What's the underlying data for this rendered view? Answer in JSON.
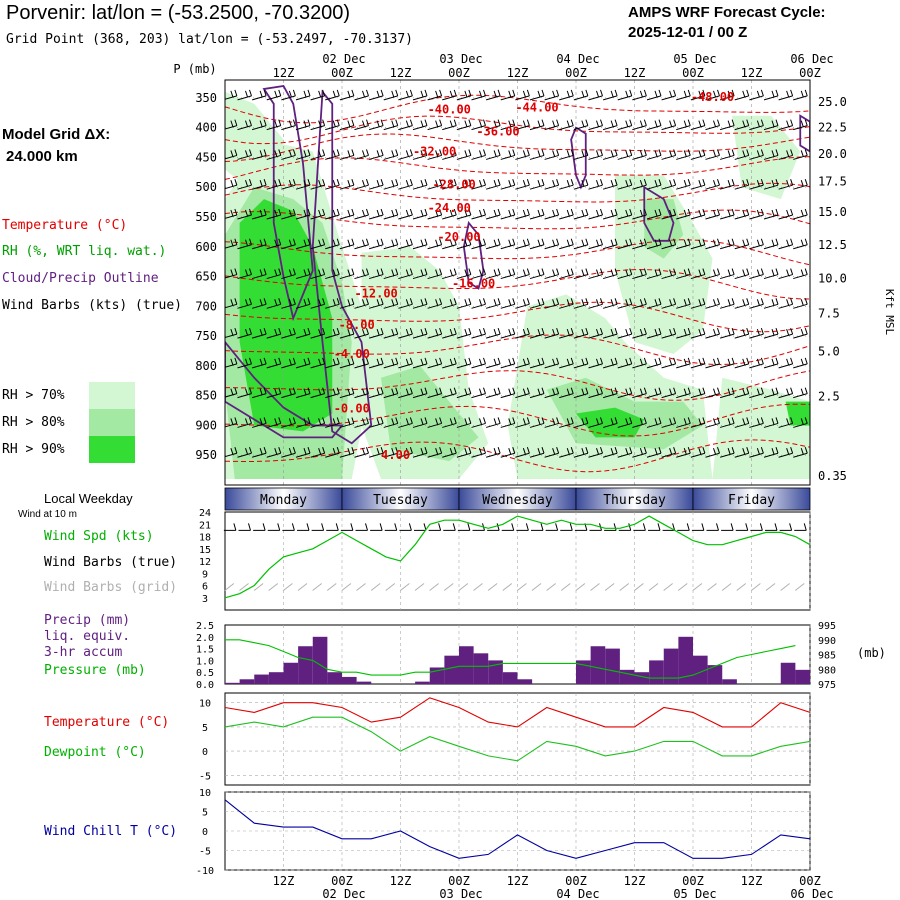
{
  "header": {
    "title": "Porvenir:  lat/lon = (-53.2500, -70.3200)",
    "grid_point": "Grid Point (368, 203) lat/lon = (-53.2497, -70.3137)",
    "cycle_line1": "AMPS WRF Forecast Cycle:",
    "cycle_line2": "2025-12-01 / 00  Z"
  },
  "left_panel": {
    "model_grid_label": "Model Grid ΔX:",
    "model_grid_value": "24.000 km",
    "legend_temperature": "Temperature (°C)",
    "legend_rh": "RH (%, WRT liq. wat.)",
    "legend_cloud": "Cloud/Precip Outline",
    "legend_wind": "Wind Barbs (kts) (true)",
    "rh70": "RH > 70%",
    "rh80": "RH > 80%",
    "rh90": "RH > 90%",
    "local_weekday": "Local Weekday",
    "wind_at_10m": "Wind at 10 m"
  },
  "colors": {
    "temperature": "#e00000",
    "rh": "#00a000",
    "cloud": "#602080",
    "pressure": "#00c000",
    "dewpoint": "#20c020",
    "windchill": "#0000a0",
    "grid_barbs": "#b0b0b0",
    "precip_bar": "#602080",
    "rh70_fill": "#d3f7d3",
    "rh80_fill": "#a3e8a3",
    "rh90_fill": "#33dd33",
    "weekday_dark": "#3a4a9a",
    "weekday_light": "#ffffff"
  },
  "chart_data": [
    {
      "id": "cross_section",
      "type": "contour",
      "title": "Time-height cross section",
      "ylabel": "P (mb)",
      "y2label": "Kft MSL",
      "top_time_label": "12Z 00Z 12Z 00Z 12Z 00Z 12Z 00Z 12Z 00Z",
      "date_labels": [
        "02 Dec",
        "03 Dec",
        "04 Dec",
        "05 Dec",
        "06 Dec"
      ],
      "date_hours": [
        24,
        48,
        72,
        96,
        120
      ],
      "time_ticks": [
        {
          "h": 12,
          "label": "12Z"
        },
        {
          "h": 24,
          "label": "00Z"
        },
        {
          "h": 36,
          "label": "12Z"
        },
        {
          "h": 48,
          "label": "00Z"
        },
        {
          "h": 60,
          "label": "12Z"
        },
        {
          "h": 72,
          "label": "00Z"
        },
        {
          "h": 84,
          "label": "12Z"
        },
        {
          "h": 96,
          "label": "00Z"
        },
        {
          "h": 108,
          "label": "12Z"
        },
        {
          "h": 120,
          "label": "00Z"
        }
      ],
      "xlim_hours": [
        0,
        120
      ],
      "pressure_levels": [
        350,
        400,
        450,
        500,
        550,
        600,
        650,
        700,
        750,
        800,
        850,
        900,
        950
      ],
      "ylim_mb": [
        320,
        1000
      ],
      "height_kft": [
        25.0,
        22.5,
        20.0,
        17.5,
        15.0,
        12.5,
        10.0,
        7.5,
        5.0,
        2.5,
        0.35
      ],
      "height_kft_labels": [
        "25.0",
        "22.5",
        "20.0",
        "17.5",
        "15.0",
        "12.5",
        "10.0",
        "7.5",
        "5.0",
        "2.5",
        "0.35"
      ],
      "height_kft_mb": [
        357,
        400,
        444,
        490,
        542,
        597,
        653,
        712,
        776,
        851,
        985
      ],
      "temp_labels": [
        {
          "text": "-48.00",
          "h": 100,
          "p": 355
        },
        {
          "text": "-44.00",
          "h": 64,
          "p": 373
        },
        {
          "text": "-40.00",
          "h": 46,
          "p": 376
        },
        {
          "text": "-36.00",
          "h": 56,
          "p": 413
        },
        {
          "text": "-32.00",
          "h": 43,
          "p": 447
        },
        {
          "text": "-28.00",
          "h": 47,
          "p": 502
        },
        {
          "text": "-24.00",
          "h": 46,
          "p": 542
        },
        {
          "text": "-20.00",
          "h": 48,
          "p": 590
        },
        {
          "text": "-16.00",
          "h": 51,
          "p": 668
        },
        {
          "text": "-12.00",
          "h": 31,
          "p": 685
        },
        {
          "text": "-8.00",
          "h": 27,
          "p": 738
        },
        {
          "text": "-4.00",
          "h": 26,
          "p": 787
        },
        {
          "text": "-0.00",
          "h": 26,
          "p": 878
        },
        {
          "text": "4.00",
          "h": 35,
          "p": 956
        }
      ]
    },
    {
      "id": "wind_panel",
      "type": "line",
      "title": "Wind at 10 m",
      "ylabel": "Wind Spd (kts)",
      "legend": [
        "Wind Spd (kts)",
        "Wind Barbs (true)",
        "Wind Barbs (grid)"
      ],
      "yticks": [
        24,
        21,
        18,
        15,
        12,
        9,
        6,
        3
      ],
      "ylim": [
        0,
        24
      ],
      "weekdays": [
        {
          "label": "Monday",
          "start": 0,
          "end": 24
        },
        {
          "label": "Tuesday",
          "start": 24,
          "end": 48
        },
        {
          "label": "Wednesday",
          "start": 48,
          "end": 72
        },
        {
          "label": "Thursday",
          "start": 72,
          "end": 96
        },
        {
          "label": "Friday",
          "start": 96,
          "end": 120
        }
      ],
      "x_hours": [
        0,
        3,
        6,
        9,
        12,
        15,
        18,
        21,
        24,
        27,
        30,
        33,
        36,
        39,
        42,
        45,
        48,
        51,
        54,
        57,
        60,
        63,
        66,
        69,
        72,
        75,
        78,
        81,
        84,
        87,
        90,
        93,
        96,
        99,
        102,
        105,
        108,
        111,
        114,
        117,
        120
      ],
      "series": [
        {
          "name": "Wind Spd (kts)",
          "values": [
            3,
            4,
            6,
            10,
            13,
            14,
            15,
            17,
            19,
            17,
            15,
            13,
            12,
            16,
            21,
            22,
            22,
            21,
            20,
            21,
            23,
            22,
            21,
            22,
            21,
            21,
            20,
            20,
            21,
            23,
            21,
            19,
            17,
            16,
            16,
            17,
            18,
            19,
            19,
            18,
            16
          ]
        }
      ]
    },
    {
      "id": "precip_panel",
      "type": "bar+line",
      "legend": [
        "Precip (mm)",
        "liq. equiv.",
        "3-hr accum",
        "Pressure (mb)"
      ],
      "y_label": "(mb)",
      "y_left_ticks": [
        0.0,
        0.5,
        1.0,
        1.5,
        2.0,
        2.5
      ],
      "y_left_tick_labels": [
        "0.0",
        "0.5",
        "1.0",
        "1.5",
        "2.0",
        "2.5"
      ],
      "ylim_left": [
        0,
        2.5
      ],
      "y_right_ticks": [
        975,
        980,
        985,
        990,
        995
      ],
      "ylim_right": [
        975,
        995
      ],
      "x_hours": [
        0,
        3,
        6,
        9,
        12,
        15,
        18,
        21,
        24,
        27,
        30,
        33,
        36,
        39,
        42,
        45,
        48,
        51,
        54,
        57,
        60,
        63,
        66,
        69,
        72,
        75,
        78,
        81,
        84,
        87,
        90,
        93,
        96,
        99,
        102,
        105,
        108,
        111,
        114,
        117
      ],
      "series": [
        {
          "name": "Precip 3-hr accum (mm)",
          "values": [
            0.05,
            0.2,
            0.4,
            0.5,
            0.9,
            1.6,
            2.0,
            0.5,
            0.3,
            0.1,
            0.0,
            0.0,
            0.0,
            0.1,
            0.7,
            1.2,
            1.6,
            1.3,
            1.0,
            0.5,
            0.2,
            0.0,
            0.0,
            0.0,
            1.0,
            1.6,
            1.5,
            0.6,
            0.5,
            1.0,
            1.5,
            2.0,
            1.2,
            0.8,
            0.2,
            0.0,
            0.0,
            0.0,
            0.9,
            0.6
          ]
        },
        {
          "name": "Pressure (mb)",
          "values": [
            990,
            990,
            989,
            988,
            986,
            984,
            983,
            980,
            979,
            979,
            978,
            978,
            978,
            979,
            979,
            980,
            981,
            981,
            981,
            982,
            982,
            982,
            982,
            982,
            982,
            981,
            980,
            979,
            978,
            977,
            977,
            977,
            978,
            980,
            982,
            984,
            985,
            986,
            987,
            988
          ]
        }
      ]
    },
    {
      "id": "temp_panel",
      "type": "line",
      "legend": [
        "Temperature (°C)",
        "Dewpoint (°C)"
      ],
      "yticks": [
        10,
        5,
        0,
        -5
      ],
      "ylim": [
        -7,
        12
      ],
      "x_hours": [
        0,
        6,
        12,
        18,
        24,
        30,
        36,
        42,
        48,
        54,
        60,
        66,
        72,
        78,
        84,
        90,
        96,
        102,
        108,
        114,
        120
      ],
      "series": [
        {
          "name": "Temperature (°C)",
          "values": [
            9,
            8,
            10,
            10,
            9,
            6,
            7,
            11,
            9,
            6,
            5,
            9,
            7,
            5,
            5,
            9,
            8,
            5,
            5,
            10,
            8
          ]
        },
        {
          "name": "Dewpoint (°C)",
          "values": [
            5,
            6,
            5,
            7,
            7,
            4,
            0,
            3,
            1,
            -1,
            -2,
            2,
            1,
            -1,
            0,
            2,
            2,
            -1,
            -1,
            1,
            2
          ]
        }
      ]
    },
    {
      "id": "windchill_panel",
      "type": "line",
      "legend": [
        "Wind Chill T (°C)"
      ],
      "yticks": [
        10,
        5,
        0,
        -5,
        -10
      ],
      "ylim": [
        -10,
        10
      ],
      "bottom_time_label": "12Z 00Z 12Z 00Z 12Z 00Z 12Z 00Z 12Z 00Z",
      "x_hours": [
        0,
        6,
        12,
        18,
        24,
        30,
        36,
        42,
        48,
        54,
        60,
        66,
        72,
        78,
        84,
        90,
        96,
        102,
        108,
        114,
        120
      ],
      "series": [
        {
          "name": "Wind Chill T (°C)",
          "values": [
            8,
            2,
            1,
            1,
            -2,
            -2,
            0,
            -4,
            -7,
            -6,
            -1,
            -5,
            -7,
            -5,
            -3,
            -3,
            -7,
            -7,
            -6,
            -1,
            -2
          ]
        }
      ]
    }
  ]
}
